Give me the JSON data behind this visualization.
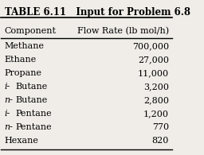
{
  "title": "TABLE 6.11   Input for Problem 6.8",
  "col1_header": "Component",
  "col2_header": "Flow Rate (lb mol/h)",
  "rows": [
    [
      "Methane",
      "700,000"
    ],
    [
      "Ethane",
      "27,000"
    ],
    [
      "Propane",
      "11,000"
    ],
    [
      "i-Butane",
      "3,200"
    ],
    [
      "n-Butane",
      "2,800"
    ],
    [
      "i-Pentane",
      "1,200"
    ],
    [
      "n-Pentane",
      "770"
    ],
    [
      "Hexane",
      "820"
    ]
  ],
  "italic_prefixes": [
    "i-",
    "n-"
  ],
  "bg_color": "#f0ede8",
  "text_color": "#000000",
  "title_fontsize": 8.5,
  "header_fontsize": 8,
  "row_fontsize": 8
}
